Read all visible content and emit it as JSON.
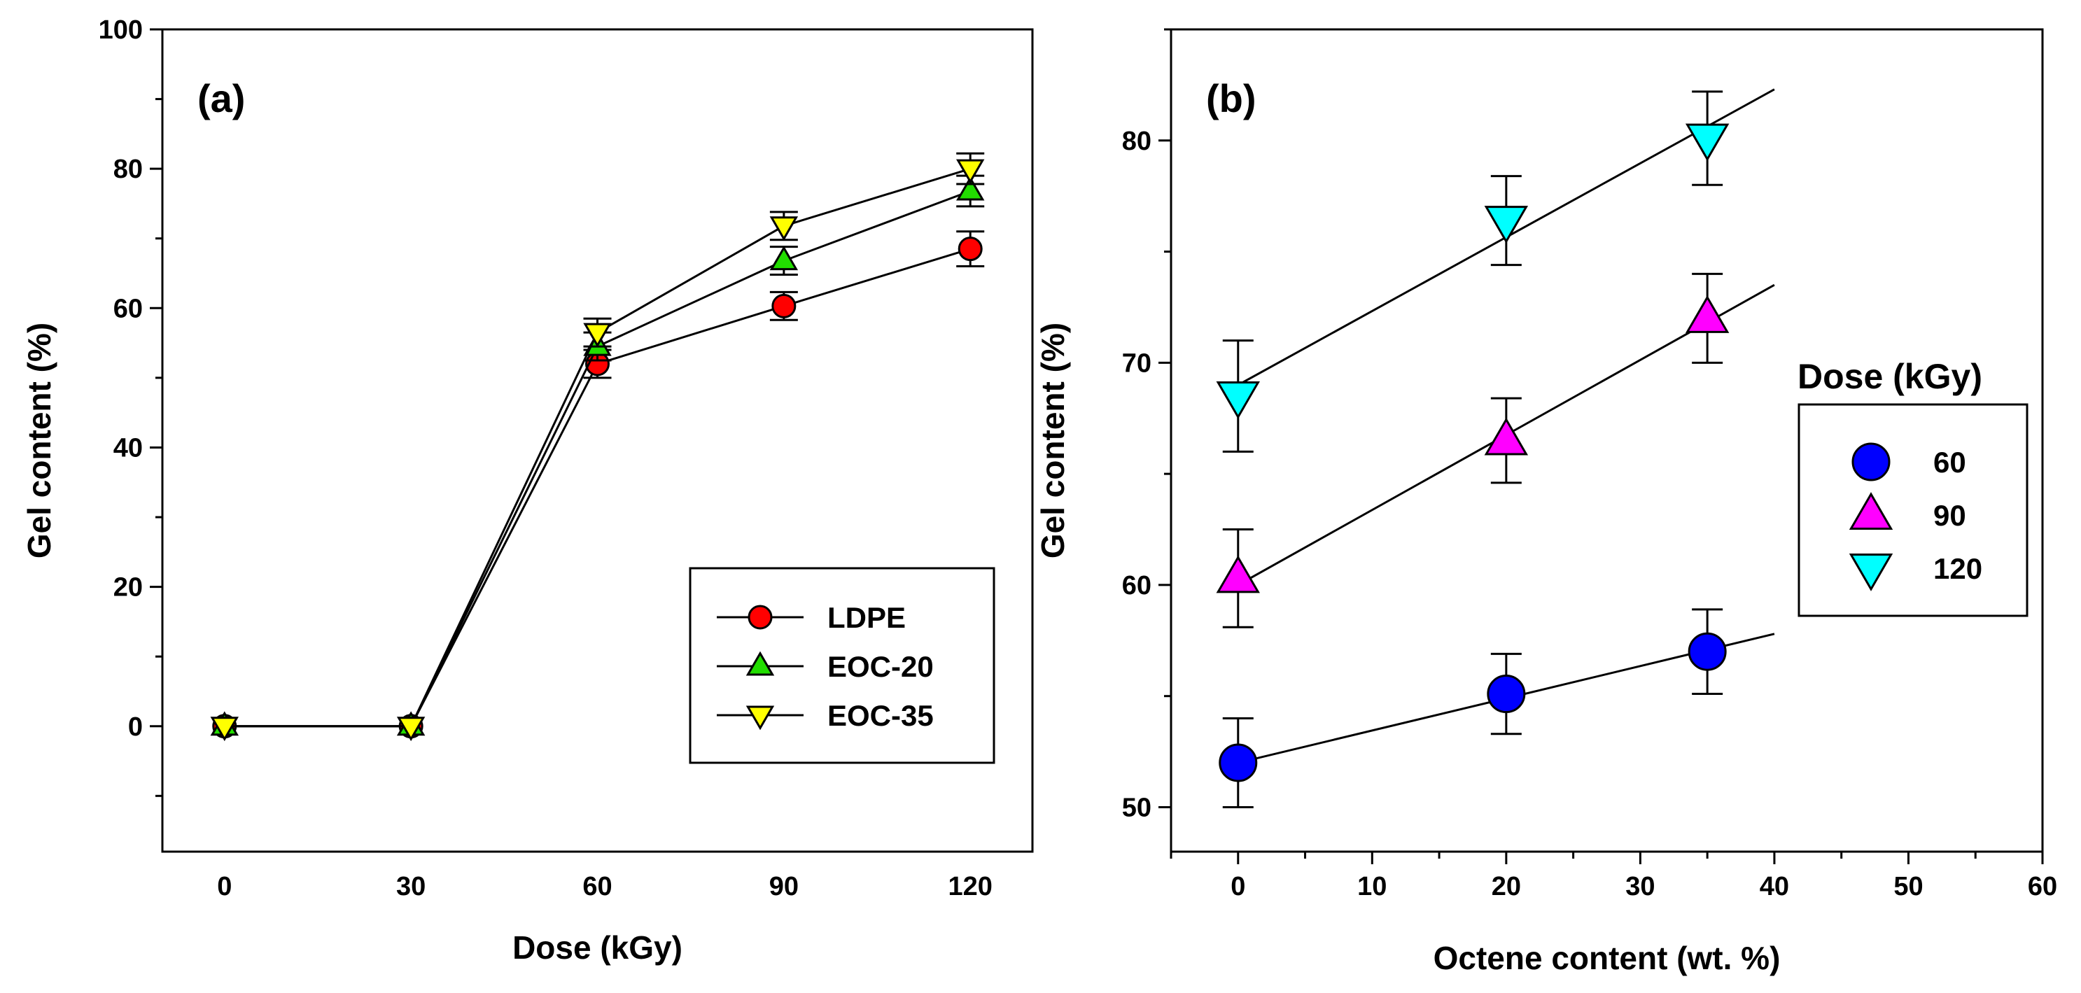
{
  "colors": {
    "LDPE": "#ff0000",
    "EOC-20": "#22dd00",
    "EOC-35": "#ffff00",
    "60": "#0000ff",
    "90": "#ff00ff",
    "120": "#00ffff",
    "line": "#000000"
  },
  "chart_data": [
    {
      "type": "line",
      "panel_label": "(a)",
      "xlabel": "Dose (kGy)",
      "ylabel": "Gel content (%)",
      "xlim": [
        -10,
        130
      ],
      "ylim": [
        -18,
        100
      ],
      "xticks": [
        0,
        30,
        60,
        90,
        120
      ],
      "xtick_labels": [
        "0",
        "30",
        "60",
        "90",
        "120"
      ],
      "yticks": [
        0,
        20,
        40,
        60,
        80,
        100
      ],
      "ytick_labels": [
        "0",
        "20",
        "40",
        "60",
        "80",
        "100"
      ],
      "legend_position": "lower-right",
      "series": [
        {
          "name": "LDPE",
          "marker": "circle",
          "x": [
            0,
            30,
            60,
            90,
            120
          ],
          "y": [
            0,
            0,
            52,
            60.3,
            68.5
          ],
          "err": [
            0,
            0,
            2.0,
            2.0,
            2.5
          ]
        },
        {
          "name": "EOC-20",
          "marker": "triangle-up",
          "x": [
            0,
            30,
            60,
            90,
            120
          ],
          "y": [
            0,
            0,
            54.5,
            66.8,
            76.8
          ],
          "err": [
            0,
            0,
            2.0,
            2.0,
            2.2
          ]
        },
        {
          "name": "EOC-35",
          "marker": "triangle-down",
          "x": [
            0,
            30,
            60,
            90,
            120
          ],
          "y": [
            0,
            0,
            56.5,
            71.8,
            80
          ],
          "err": [
            0,
            0,
            2.0,
            2.0,
            2.2
          ]
        }
      ]
    },
    {
      "type": "scatter",
      "panel_label": "(b)",
      "xlabel": "Octene content (wt. %)",
      "ylabel": "Gel content (%)",
      "xlim": [
        -5,
        60
      ],
      "ylim": [
        48,
        85
      ],
      "xticks": [
        0,
        10,
        20,
        30,
        40,
        50,
        60
      ],
      "xtick_labels": [
        "0",
        "10",
        "20",
        "30",
        "40",
        "50",
        "60"
      ],
      "yticks": [
        50,
        60,
        70,
        80
      ],
      "ytick_labels": [
        "50",
        "60",
        "70",
        "80"
      ],
      "legend_title": "Dose (kGy)",
      "legend_position": "right",
      "series": [
        {
          "name": "60",
          "marker": "circle",
          "x": [
            0,
            20,
            35
          ],
          "y": [
            52,
            55.1,
            57
          ],
          "err": [
            2.0,
            1.8,
            1.9
          ],
          "fit": {
            "x": [
              0,
              40
            ],
            "y": [
              52,
              57.8
            ]
          }
        },
        {
          "name": "90",
          "marker": "triangle-up",
          "x": [
            0,
            20,
            35
          ],
          "y": [
            60.3,
            66.5,
            72
          ],
          "err": [
            2.2,
            1.9,
            2.0
          ],
          "fit": {
            "x": [
              0,
              40
            ],
            "y": [
              60,
              73.5
            ]
          }
        },
        {
          "name": "120",
          "marker": "triangle-down",
          "x": [
            0,
            20,
            35
          ],
          "y": [
            68.5,
            76.4,
            80.1
          ],
          "err": [
            2.5,
            2.0,
            2.1
          ],
          "fit": {
            "x": [
              0,
              40
            ],
            "y": [
              69,
              82.3
            ]
          }
        }
      ]
    }
  ]
}
